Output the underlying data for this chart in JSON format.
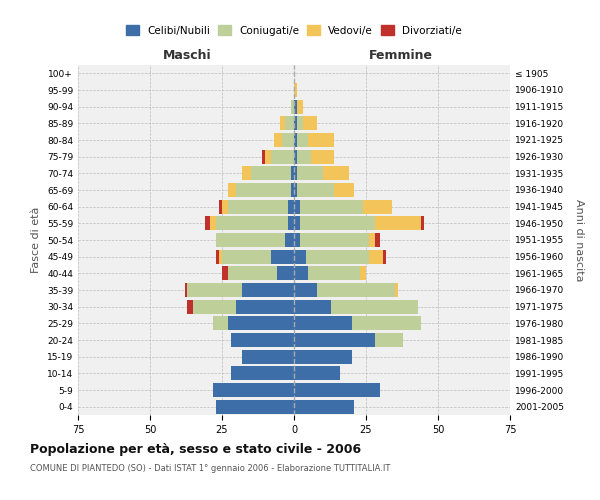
{
  "age_groups": [
    "0-4",
    "5-9",
    "10-14",
    "15-19",
    "20-24",
    "25-29",
    "30-34",
    "35-39",
    "40-44",
    "45-49",
    "50-54",
    "55-59",
    "60-64",
    "65-69",
    "70-74",
    "75-79",
    "80-84",
    "85-89",
    "90-94",
    "95-99",
    "100+"
  ],
  "birth_years": [
    "2001-2005",
    "1996-2000",
    "1991-1995",
    "1986-1990",
    "1981-1985",
    "1976-1980",
    "1971-1975",
    "1966-1970",
    "1961-1965",
    "1956-1960",
    "1951-1955",
    "1946-1950",
    "1941-1945",
    "1936-1940",
    "1931-1935",
    "1926-1930",
    "1921-1925",
    "1916-1920",
    "1911-1915",
    "1906-1910",
    "≤ 1905"
  ],
  "male": {
    "single": [
      27,
      28,
      22,
      18,
      22,
      23,
      20,
      18,
      6,
      8,
      3,
      2,
      2,
      1,
      1,
      0,
      0,
      0,
      0,
      0,
      0
    ],
    "married": [
      0,
      0,
      0,
      0,
      0,
      5,
      15,
      19,
      17,
      17,
      24,
      25,
      21,
      19,
      14,
      8,
      4,
      3,
      1,
      0,
      0
    ],
    "widowed": [
      0,
      0,
      0,
      0,
      0,
      0,
      0,
      0,
      0,
      1,
      0,
      2,
      2,
      3,
      3,
      2,
      3,
      2,
      0,
      0,
      0
    ],
    "divorced": [
      0,
      0,
      0,
      0,
      0,
      0,
      2,
      1,
      2,
      1,
      0,
      2,
      1,
      0,
      0,
      1,
      0,
      0,
      0,
      0,
      0
    ]
  },
  "female": {
    "single": [
      21,
      30,
      16,
      20,
      28,
      20,
      13,
      8,
      5,
      4,
      2,
      2,
      2,
      1,
      1,
      1,
      1,
      1,
      1,
      0,
      0
    ],
    "married": [
      0,
      0,
      0,
      0,
      10,
      24,
      30,
      27,
      18,
      22,
      24,
      26,
      22,
      13,
      9,
      5,
      4,
      2,
      0,
      0,
      0
    ],
    "widowed": [
      0,
      0,
      0,
      0,
      0,
      0,
      0,
      1,
      2,
      5,
      2,
      16,
      10,
      7,
      9,
      8,
      9,
      5,
      2,
      1,
      0
    ],
    "divorced": [
      0,
      0,
      0,
      0,
      0,
      0,
      0,
      0,
      0,
      1,
      2,
      1,
      0,
      0,
      0,
      0,
      0,
      0,
      0,
      0,
      0
    ]
  },
  "colors": {
    "single": "#3D6EA8",
    "married": "#BECF9A",
    "widowed": "#F2C45A",
    "divorced": "#C0312B"
  },
  "xlim": 75,
  "title": "Popolazione per età, sesso e stato civile - 2006",
  "subtitle": "COMUNE DI PIANTEDO (SO) - Dati ISTAT 1° gennaio 2006 - Elaborazione TUTTITALIA.IT",
  "ylabel_left": "Fasce di età",
  "ylabel_right": "Anni di nascita",
  "xlabel_left": "Maschi",
  "xlabel_right": "Femmine",
  "bg_color": "#ffffff",
  "plot_bg": "#f0f0f0",
  "legend_labels": [
    "Celibi/Nubili",
    "Coniugati/e",
    "Vedovi/e",
    "Divorziati/e"
  ]
}
